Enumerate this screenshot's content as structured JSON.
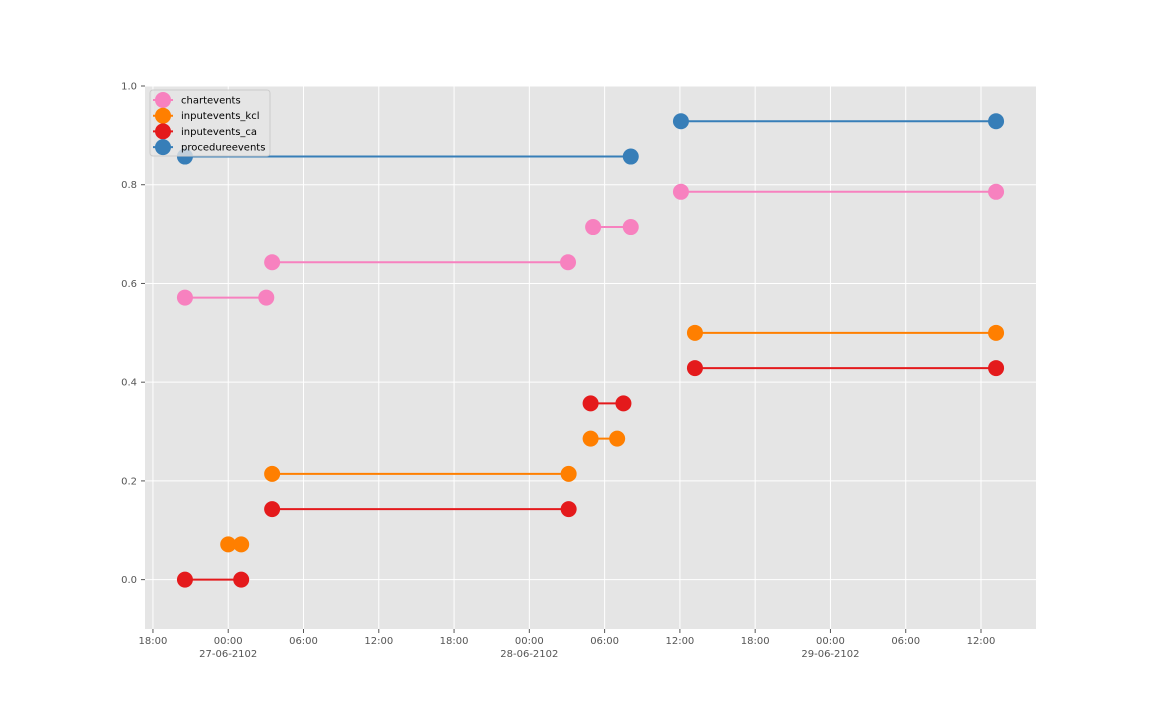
{
  "chart_data": {
    "type": "line",
    "title": "",
    "xlabel": "",
    "ylabel": "",
    "style": "ggplot",
    "grid": true,
    "legend_position": "top-left",
    "xlim": [
      "2102-06-26T17:22",
      "2102-06-29T16:23"
    ],
    "ylim": [
      -0.1,
      1.0
    ],
    "yticks": [
      {
        "value": 0.0,
        "label": "0.0"
      },
      {
        "value": 0.2,
        "label": "0.2"
      },
      {
        "value": 0.4,
        "label": "0.4"
      },
      {
        "value": 0.6,
        "label": "0.6"
      },
      {
        "value": 0.8,
        "label": "0.8"
      },
      {
        "value": 1.0,
        "label": "1.0"
      }
    ],
    "xticks": [
      {
        "value": "2102-06-26T18:00",
        "label": "18:00",
        "date": ""
      },
      {
        "value": "2102-06-27T00:00",
        "label": "00:00",
        "date": "27-06-2102"
      },
      {
        "value": "2102-06-27T06:00",
        "label": "06:00",
        "date": ""
      },
      {
        "value": "2102-06-27T12:00",
        "label": "12:00",
        "date": ""
      },
      {
        "value": "2102-06-27T18:00",
        "label": "18:00",
        "date": ""
      },
      {
        "value": "2102-06-28T00:00",
        "label": "00:00",
        "date": "28-06-2102"
      },
      {
        "value": "2102-06-28T06:00",
        "label": "06:00",
        "date": ""
      },
      {
        "value": "2102-06-28T12:00",
        "label": "12:00",
        "date": ""
      },
      {
        "value": "2102-06-28T18:00",
        "label": "18:00",
        "date": ""
      },
      {
        "value": "2102-06-29T00:00",
        "label": "00:00",
        "date": "29-06-2102"
      },
      {
        "value": "2102-06-29T06:00",
        "label": "06:00",
        "date": ""
      },
      {
        "value": "2102-06-29T12:00",
        "label": "12:00",
        "date": ""
      }
    ],
    "series": [
      {
        "name": "chartevents",
        "color": "#f781bf",
        "segments": [
          {
            "y": 0.5714,
            "start": "2102-06-26T20:33",
            "end": "2102-06-27T03:02"
          },
          {
            "y": 0.6429,
            "start": "2102-06-27T03:30",
            "end": "2102-06-28T03:05"
          },
          {
            "y": 0.7143,
            "start": "2102-06-28T05:05",
            "end": "2102-06-28T08:05"
          },
          {
            "y": 0.7857,
            "start": "2102-06-28T12:05",
            "end": "2102-06-29T13:12"
          }
        ]
      },
      {
        "name": "inputevents_kcl",
        "color": "#ff7f00",
        "segments": [
          {
            "y": 0.0714,
            "start": "2102-06-27T00:00",
            "end": "2102-06-27T01:02"
          },
          {
            "y": 0.2143,
            "start": "2102-06-27T03:30",
            "end": "2102-06-28T03:08"
          },
          {
            "y": 0.2857,
            "start": "2102-06-28T04:53",
            "end": "2102-06-28T07:00"
          },
          {
            "y": 0.5,
            "start": "2102-06-28T13:12",
            "end": "2102-06-29T13:12"
          }
        ]
      },
      {
        "name": "inputevents_ca",
        "color": "#e41a1c",
        "segments": [
          {
            "y": 0.0,
            "start": "2102-06-26T20:33",
            "end": "2102-06-27T01:02"
          },
          {
            "y": 0.1429,
            "start": "2102-06-27T03:30",
            "end": "2102-06-28T03:08"
          },
          {
            "y": 0.3571,
            "start": "2102-06-28T04:53",
            "end": "2102-06-28T07:30"
          },
          {
            "y": 0.4286,
            "start": "2102-06-28T13:12",
            "end": "2102-06-29T13:12"
          }
        ]
      },
      {
        "name": "procedureevents",
        "color": "#377eb8",
        "segments": [
          {
            "y": 0.8571,
            "start": "2102-06-26T20:33",
            "end": "2102-06-28T08:05"
          },
          {
            "y": 0.9286,
            "start": "2102-06-28T12:05",
            "end": "2102-06-29T13:12"
          }
        ]
      }
    ]
  }
}
